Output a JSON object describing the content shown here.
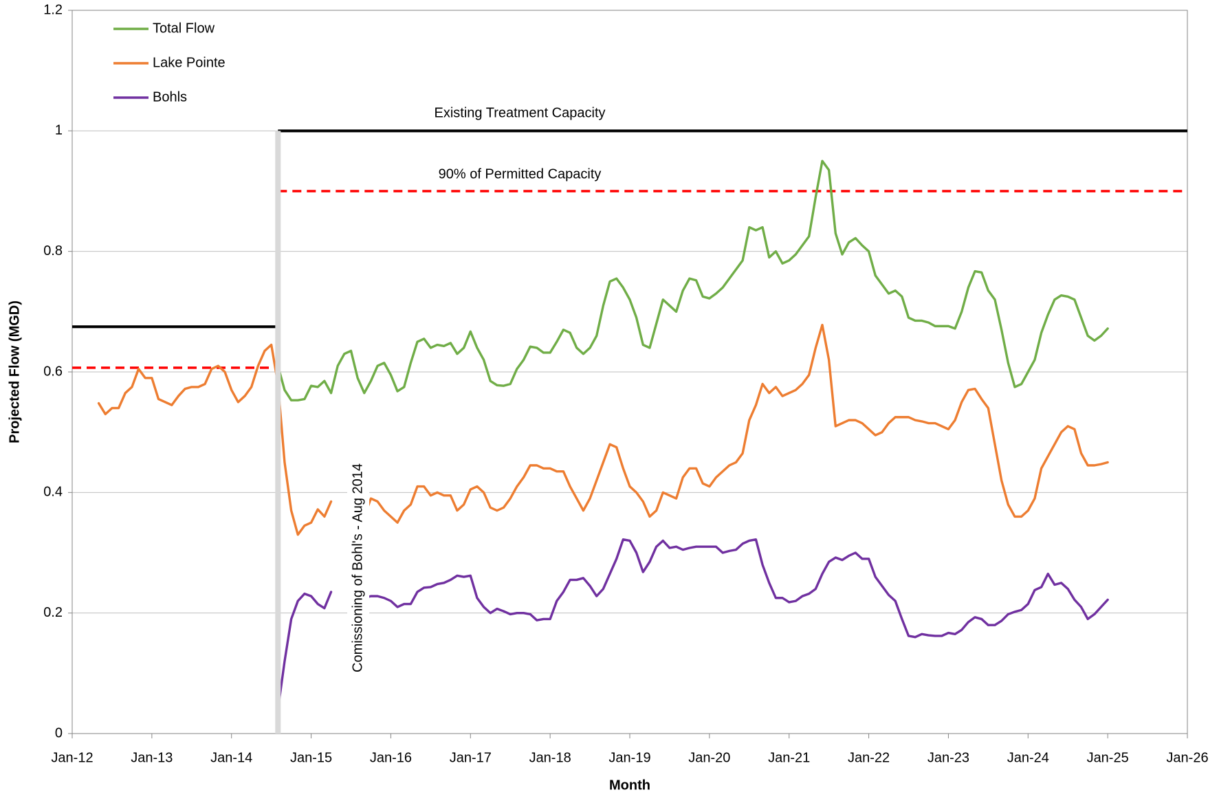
{
  "chart_data": {
    "type": "line",
    "x_label": "Month",
    "y_label": "Projected Flow (MGD)",
    "xlim": [
      "2012-01",
      "2026-01"
    ],
    "xticks": [
      {
        "value": "2012-01",
        "label": "Jan-12"
      },
      {
        "value": "2013-01",
        "label": "Jan-13"
      },
      {
        "value": "2014-01",
        "label": "Jan-14"
      },
      {
        "value": "2015-01",
        "label": "Jan-15"
      },
      {
        "value": "2016-01",
        "label": "Jan-16"
      },
      {
        "value": "2017-01",
        "label": "Jan-17"
      },
      {
        "value": "2018-01",
        "label": "Jan-18"
      },
      {
        "value": "2019-01",
        "label": "Jan-19"
      },
      {
        "value": "2020-01",
        "label": "Jan-20"
      },
      {
        "value": "2021-01",
        "label": "Jan-21"
      },
      {
        "value": "2022-01",
        "label": "Jan-22"
      },
      {
        "value": "2023-01",
        "label": "Jan-23"
      },
      {
        "value": "2024-01",
        "label": "Jan-24"
      },
      {
        "value": "2025-01",
        "label": "Jan-25"
      },
      {
        "value": "2026-01",
        "label": "Jan-26"
      }
    ],
    "ylim": [
      0,
      1.2
    ],
    "yticks": [
      0,
      0.2,
      0.4,
      0.6,
      0.8,
      1,
      1.2
    ],
    "grid": true,
    "legend": "top-left",
    "x": [
      "2012-05",
      "2012-06",
      "2012-07",
      "2012-08",
      "2012-09",
      "2012-10",
      "2012-11",
      "2012-12",
      "2013-01",
      "2013-02",
      "2013-03",
      "2013-04",
      "2013-05",
      "2013-06",
      "2013-07",
      "2013-08",
      "2013-09",
      "2013-10",
      "2013-11",
      "2013-12",
      "2014-01",
      "2014-02",
      "2014-03",
      "2014-04",
      "2014-05",
      "2014-06",
      "2014-07",
      "2014-08",
      "2014-09",
      "2014-10",
      "2014-11",
      "2014-12",
      "2015-01",
      "2015-02",
      "2015-03",
      "2015-04",
      "2015-05",
      "2015-06",
      "2015-07",
      "2015-08",
      "2015-09",
      "2015-10",
      "2015-11",
      "2015-12",
      "2016-01",
      "2016-02",
      "2016-03",
      "2016-04",
      "2016-05",
      "2016-06",
      "2016-07",
      "2016-08",
      "2016-09",
      "2016-10",
      "2016-11",
      "2016-12",
      "2017-01",
      "2017-02",
      "2017-03",
      "2017-04",
      "2017-05",
      "2017-06",
      "2017-07",
      "2017-08",
      "2017-09",
      "2017-10",
      "2017-11",
      "2017-12",
      "2018-01",
      "2018-02",
      "2018-03",
      "2018-04",
      "2018-05",
      "2018-06",
      "2018-07",
      "2018-08",
      "2018-09",
      "2018-10",
      "2018-11",
      "2018-12",
      "2019-01",
      "2019-02",
      "2019-03",
      "2019-04",
      "2019-05",
      "2019-06",
      "2019-07",
      "2019-08",
      "2019-09",
      "2019-10",
      "2019-11",
      "2019-12",
      "2020-01",
      "2020-02",
      "2020-03",
      "2020-04",
      "2020-05",
      "2020-06",
      "2020-07",
      "2020-08",
      "2020-09",
      "2020-10",
      "2020-11",
      "2020-12",
      "2021-01",
      "2021-02",
      "2021-03",
      "2021-04",
      "2021-05",
      "2021-06",
      "2021-07",
      "2021-08",
      "2021-09",
      "2021-10",
      "2021-11",
      "2021-12",
      "2022-01",
      "2022-02",
      "2022-03",
      "2022-04",
      "2022-05",
      "2022-06",
      "2022-07",
      "2022-08",
      "2022-09",
      "2022-10",
      "2022-11",
      "2022-12",
      "2023-01",
      "2023-02",
      "2023-03",
      "2023-04",
      "2023-05",
      "2023-06",
      "2023-07",
      "2023-08",
      "2023-09",
      "2023-10",
      "2023-11",
      "2023-12",
      "2024-01",
      "2024-02",
      "2024-03",
      "2024-04",
      "2024-05",
      "2024-06",
      "2024-07",
      "2024-08",
      "2024-09",
      "2024-10",
      "2024-11",
      "2024-12",
      "2025-01"
    ],
    "series": [
      {
        "name": "Total Flow",
        "color": "#70ad47",
        "values": [
          null,
          null,
          null,
          null,
          null,
          null,
          null,
          null,
          null,
          null,
          null,
          null,
          null,
          null,
          null,
          null,
          null,
          null,
          null,
          null,
          null,
          null,
          null,
          null,
          null,
          null,
          null,
          0.61,
          0.57,
          0.553,
          0.553,
          0.555,
          0.577,
          0.575,
          0.585,
          0.565,
          0.61,
          0.63,
          0.635,
          0.59,
          0.565,
          0.585,
          0.61,
          0.615,
          0.595,
          0.568,
          0.575,
          0.615,
          0.65,
          0.655,
          0.64,
          0.645,
          0.643,
          0.648,
          0.63,
          0.64,
          0.667,
          0.64,
          0.62,
          0.585,
          0.578,
          0.577,
          0.58,
          0.605,
          0.62,
          0.642,
          0.64,
          0.632,
          0.632,
          0.65,
          0.67,
          0.665,
          0.64,
          0.63,
          0.64,
          0.66,
          0.71,
          0.75,
          0.755,
          0.74,
          0.72,
          0.69,
          0.645,
          0.64,
          0.68,
          0.72,
          0.71,
          0.7,
          0.735,
          0.755,
          0.752,
          0.725,
          0.722,
          0.73,
          0.74,
          0.755,
          0.77,
          0.785,
          0.84,
          0.835,
          0.84,
          0.79,
          0.8,
          0.78,
          0.785,
          0.795,
          0.81,
          0.825,
          0.89,
          0.95,
          0.935,
          0.83,
          0.795,
          0.815,
          0.822,
          0.81,
          0.8,
          0.76,
          0.745,
          0.73,
          0.735,
          0.725,
          0.69,
          0.685,
          0.685,
          0.682,
          0.676,
          0.676,
          0.676,
          0.672,
          0.7,
          0.74,
          0.767,
          0.765,
          0.735,
          0.72,
          0.67,
          0.615,
          0.575,
          0.58,
          0.6,
          0.62,
          0.665,
          0.695,
          0.72,
          0.727,
          0.725,
          0.72,
          0.69,
          0.66,
          0.652,
          0.66,
          0.672
        ]
      },
      {
        "name": "Lake Pointe",
        "color": "#ed7d31",
        "values": [
          0.548,
          0.53,
          0.54,
          0.54,
          0.565,
          0.575,
          0.605,
          0.59,
          0.59,
          0.555,
          0.55,
          0.545,
          0.56,
          0.572,
          0.575,
          0.575,
          0.58,
          0.605,
          0.61,
          0.6,
          0.57,
          0.55,
          0.56,
          0.575,
          0.61,
          0.635,
          0.645,
          0.58,
          0.45,
          0.37,
          0.33,
          0.345,
          0.35,
          0.372,
          0.36,
          0.385,
          null,
          null,
          null,
          null,
          0.36,
          0.39,
          0.385,
          0.37,
          0.36,
          0.35,
          0.37,
          0.38,
          0.41,
          0.41,
          0.395,
          0.4,
          0.395,
          0.395,
          0.37,
          0.38,
          0.405,
          0.41,
          0.4,
          0.375,
          0.37,
          0.375,
          0.39,
          0.41,
          0.425,
          0.445,
          0.445,
          0.44,
          0.44,
          0.435,
          0.435,
          0.41,
          0.39,
          0.37,
          0.39,
          0.42,
          0.45,
          0.48,
          0.475,
          0.44,
          0.41,
          0.4,
          0.385,
          0.36,
          0.37,
          0.4,
          0.395,
          0.39,
          0.425,
          0.44,
          0.44,
          0.415,
          0.41,
          0.425,
          0.435,
          0.445,
          0.45,
          0.465,
          0.52,
          0.545,
          0.58,
          0.565,
          0.575,
          0.56,
          0.565,
          0.57,
          0.58,
          0.595,
          0.64,
          0.678,
          0.62,
          0.51,
          0.515,
          0.52,
          0.52,
          0.515,
          0.505,
          0.495,
          0.5,
          0.515,
          0.525,
          0.525,
          0.525,
          0.52,
          0.518,
          0.515,
          0.515,
          0.51,
          0.505,
          0.52,
          0.55,
          0.57,
          0.572,
          0.555,
          0.54,
          0.48,
          0.42,
          0.38,
          0.36,
          0.36,
          0.37,
          0.39,
          0.44,
          0.46,
          0.48,
          0.5,
          0.51,
          0.505,
          0.465,
          0.445,
          0.445,
          0.447,
          0.45
        ]
      },
      {
        "name": "Bohls",
        "color": "#7030a0",
        "values": [
          null,
          null,
          null,
          null,
          null,
          null,
          null,
          null,
          null,
          null,
          null,
          null,
          null,
          null,
          null,
          null,
          null,
          null,
          null,
          null,
          null,
          null,
          null,
          null,
          null,
          null,
          null,
          0.04,
          0.12,
          0.19,
          0.22,
          0.232,
          0.228,
          0.215,
          0.208,
          0.235,
          null,
          null,
          null,
          null,
          0.225,
          0.228,
          0.228,
          0.225,
          0.22,
          0.21,
          0.215,
          0.215,
          0.235,
          0.242,
          0.243,
          0.248,
          0.25,
          0.255,
          0.262,
          0.26,
          0.262,
          0.225,
          0.21,
          0.2,
          0.207,
          0.203,
          0.198,
          0.2,
          0.2,
          0.198,
          0.188,
          0.19,
          0.19,
          0.22,
          0.235,
          0.255,
          0.255,
          0.258,
          0.245,
          0.228,
          0.24,
          0.265,
          0.29,
          0.322,
          0.32,
          0.3,
          0.268,
          0.285,
          0.31,
          0.32,
          0.308,
          0.31,
          0.305,
          0.308,
          0.31,
          0.31,
          0.31,
          0.31,
          0.3,
          0.303,
          0.305,
          0.315,
          0.32,
          0.322,
          0.28,
          0.25,
          0.225,
          0.225,
          0.218,
          0.22,
          0.228,
          0.232,
          0.24,
          0.265,
          0.285,
          0.292,
          0.288,
          0.295,
          0.3,
          0.29,
          0.29,
          0.26,
          0.245,
          0.23,
          0.22,
          0.19,
          0.162,
          0.16,
          0.165,
          0.163,
          0.162,
          0.162,
          0.167,
          0.165,
          0.172,
          0.185,
          0.193,
          0.19,
          0.18,
          0.18,
          0.187,
          0.198,
          0.202,
          0.205,
          0.215,
          0.238,
          0.243,
          0.265,
          0.247,
          0.25,
          0.24,
          0.222,
          0.21,
          0.19,
          0.198,
          0.21,
          0.222
        ]
      }
    ],
    "reference_lines": [
      {
        "label": "Existing Treatment Capacity",
        "color": "#000000",
        "dashed": false,
        "segments": [
          {
            "x": [
              "2012-01",
              "2014-08"
            ],
            "value": 0.675
          },
          {
            "x": [
              "2014-08",
              "2026-01"
            ],
            "value": 1
          }
        ]
      },
      {
        "label": "90% of Permitted Capacity",
        "color": "#ff0000",
        "dashed": true,
        "segments": [
          {
            "x": [
              "2012-01",
              "2014-07"
            ],
            "value": 0.607
          },
          {
            "x": [
              "2014-08",
              "2026-01"
            ],
            "value": 0.9
          }
        ]
      }
    ],
    "vline": {
      "x": "2014-08",
      "label": "Comissioning of Bohl's - Aug 2014",
      "color": "#d9d9d9"
    }
  }
}
